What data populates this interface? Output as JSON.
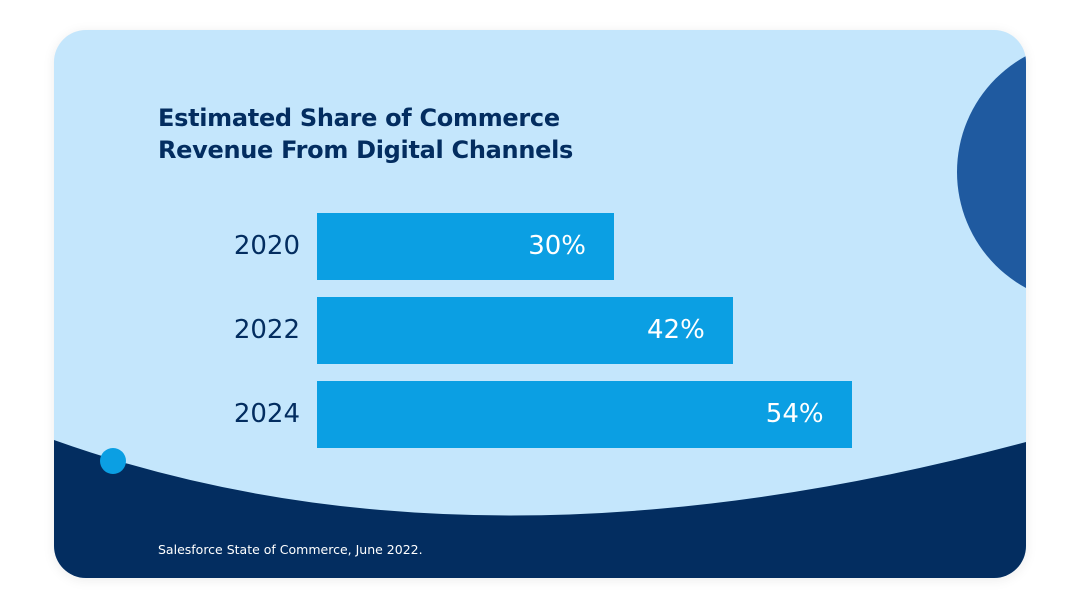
{
  "colors": {
    "card_bg": "#c4e6fc",
    "bar": "#0b9fe3",
    "title": "#032d60",
    "footer_wave": "#032d60",
    "semicircle": "#1f5aa0",
    "dot": "#0b9fe3"
  },
  "chart_data": {
    "type": "bar",
    "orientation": "horizontal",
    "title": "Estimated Share of Commerce Revenue From Digital Channels",
    "title_lines": [
      "Estimated Share of Commerce",
      "Revenue From Digital Channels"
    ],
    "categories": [
      "2020",
      "2022",
      "2024"
    ],
    "values": [
      30,
      42,
      54
    ],
    "value_labels": [
      "30%",
      "42%",
      "54%"
    ],
    "unit": "%",
    "xlim": [
      0,
      100
    ],
    "xlabel": "",
    "ylabel": "",
    "grid": false,
    "legend": "none"
  },
  "footer": {
    "source": "Salesforce State of Commerce, June 2022."
  }
}
